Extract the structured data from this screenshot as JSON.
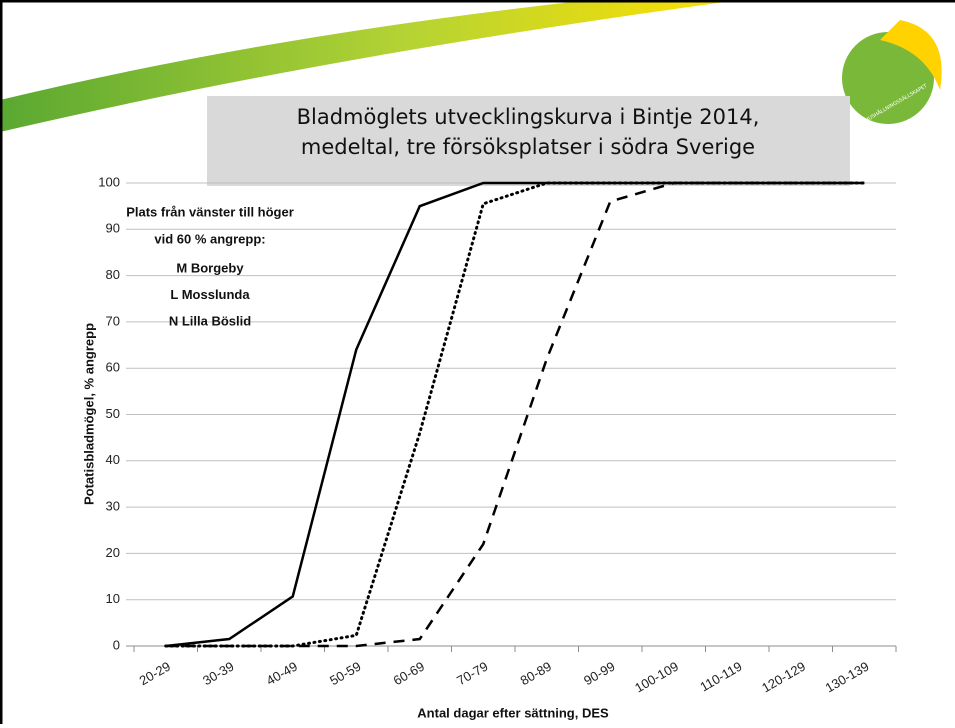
{
  "logo": {
    "text": "HUSHÅLLNINGSSÄLLSKAPET"
  },
  "chart_data": {
    "type": "line",
    "title": [
      "Bladmöglets utvecklingskurva i Bintje 2014,",
      "medeltal, tre försöksplatser i södra Sverige"
    ],
    "x_label": "Antal dagar efter sättning, DES",
    "y_label": "Potatisbladmögel, % angrepp",
    "annotations": [
      "Plats från vänster till höger",
      "vid 60 % angrepp:"
    ],
    "categories": [
      "20-29",
      "30-39",
      "40-49",
      "50-59",
      "60-69",
      "70-79",
      "80-89",
      "90-99",
      "100-109",
      "110-119",
      "120-129",
      "130-139"
    ],
    "series": [
      {
        "name": "M Borgeby",
        "color": "#000000",
        "dash": "solid",
        "values": [
          0,
          1.5,
          10.7,
          64,
          95,
          100,
          100,
          100,
          100,
          100,
          100,
          100
        ]
      },
      {
        "name": "L Mosslunda",
        "color": "#000000",
        "dash": "dotted",
        "values": [
          0,
          0,
          0,
          2.3,
          46,
          95.5,
          100,
          100,
          100,
          100,
          100,
          100
        ]
      },
      {
        "name": "N Lilla Böslid",
        "color": "#000000",
        "dash": "dashed",
        "values": [
          0,
          0,
          0,
          0,
          1.5,
          22,
          62,
          96,
          100,
          100,
          100,
          100
        ]
      }
    ],
    "ylim": [
      0,
      100
    ],
    "yticks": [
      0,
      10,
      20,
      30,
      40,
      50,
      60,
      70,
      80,
      90,
      100
    ],
    "grid": true
  }
}
